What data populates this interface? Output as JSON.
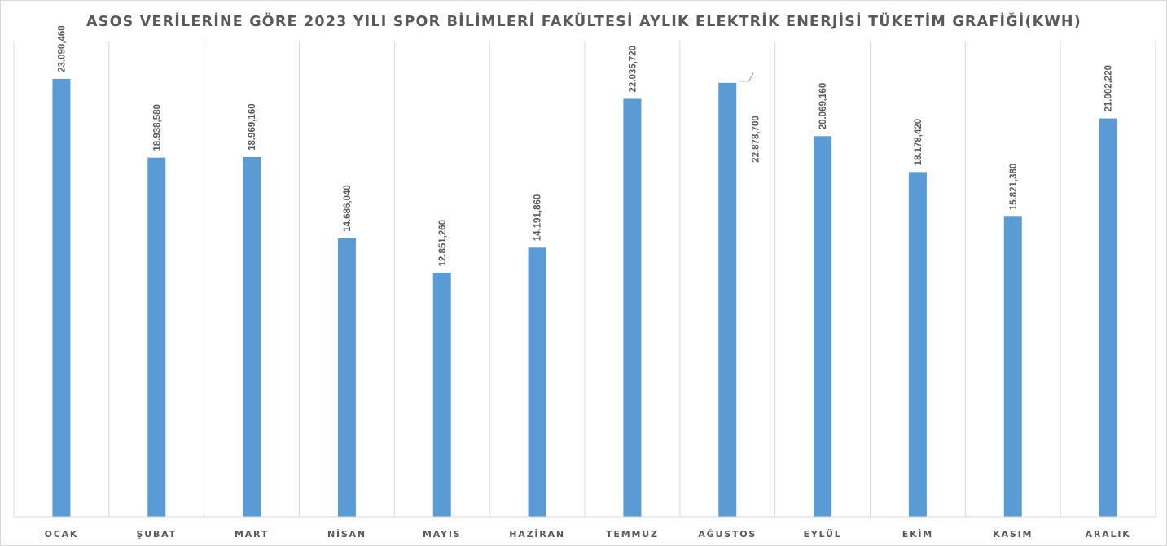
{
  "chart_data": {
    "type": "bar",
    "title": "ASOS VERİLERİNE GÖRE 2023 YILI SPOR BİLİMLERİ FAKÜLTESİ AYLIK ELEKTRİK ENERJİSİ TÜKETİM GRAFİĞİ(KWH)",
    "xlabel": "",
    "ylabel": "",
    "categories": [
      "OCAK",
      "ŞUBAT",
      "MART",
      "NİSAN",
      "MAYIS",
      "HAZİRAN",
      "TEMMUZ",
      "AĞUSTOS",
      "EYLÜL",
      "EKİM",
      "KASIM",
      "ARALIK"
    ],
    "values": [
      23090.46,
      18938.58,
      18969.16,
      14686.04,
      12851.26,
      14191.86,
      22035.72,
      22878.7,
      20069.16,
      18178.42,
      15821.38,
      21002.22
    ],
    "data_labels": [
      "23.090,460",
      "18.938,580",
      "18.969,160",
      "14.686,040",
      "12.851,260",
      "14.191,860",
      "22.035,720",
      "22.878,700",
      "20.069,160",
      "18.178,420",
      "15.821,380",
      "21.002,220"
    ],
    "ylim": [
      0,
      23000
    ],
    "bar_color": "#5b9bd5",
    "grid": "vertical category separators",
    "legend": "none"
  }
}
